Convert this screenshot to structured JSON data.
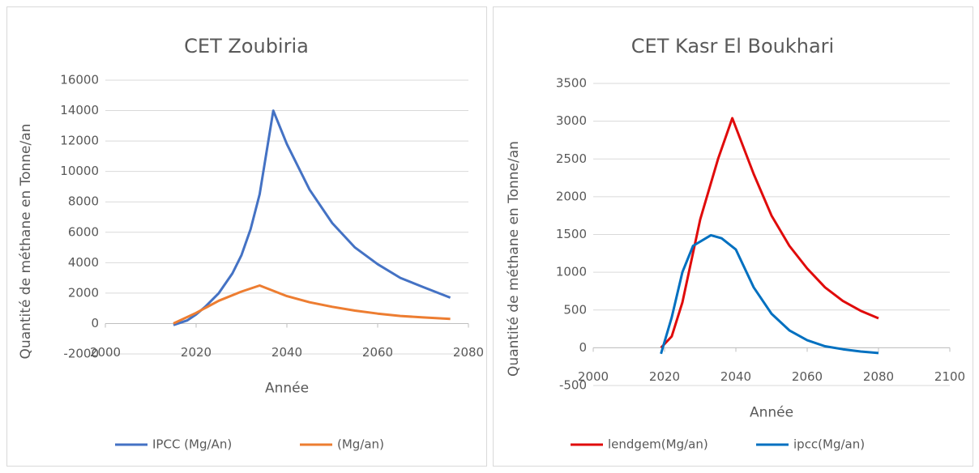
{
  "chart_data": [
    {
      "type": "line",
      "title": "CET Zoubiria",
      "xlabel": "Année",
      "ylabel": "Quantité de méthane en Tonne/an",
      "xlim": [
        2000,
        2080
      ],
      "xticks": [
        2000,
        2020,
        2040,
        2060,
        2080
      ],
      "ylim": [
        -2000,
        16000
      ],
      "yticks": [
        -2000,
        0,
        2000,
        4000,
        6000,
        8000,
        10000,
        12000,
        14000,
        16000
      ],
      "grid": true,
      "series": [
        {
          "name": "IPCC (Mg/An)",
          "color": "#4472c4",
          "x": [
            2015,
            2018,
            2020,
            2022,
            2025,
            2028,
            2030,
            2032,
            2034,
            2037,
            2040,
            2045,
            2050,
            2055,
            2060,
            2065,
            2070,
            2076
          ],
          "values": [
            -100,
            200,
            600,
            1100,
            2000,
            3300,
            4500,
            6200,
            8500,
            14000,
            11800,
            8800,
            6600,
            5000,
            3900,
            3000,
            2400,
            1700
          ]
        },
        {
          "name": "(Mg/an)",
          "color": "#ed7d31",
          "x": [
            2015,
            2020,
            2025,
            2030,
            2034,
            2040,
            2045,
            2050,
            2055,
            2060,
            2065,
            2070,
            2076
          ],
          "values": [
            0,
            700,
            1500,
            2100,
            2500,
            1800,
            1400,
            1100,
            850,
            650,
            500,
            400,
            300
          ]
        }
      ]
    },
    {
      "type": "line",
      "title": "CET Kasr El Boukhari",
      "xlabel": "Année",
      "ylabel": "Quantité de méthane en Tonne/an",
      "xlim": [
        2000,
        2100
      ],
      "xticks": [
        2000,
        2020,
        2040,
        2060,
        2080,
        2100
      ],
      "ylim": [
        -500,
        3500
      ],
      "yticks": [
        -500,
        0,
        500,
        1000,
        1500,
        2000,
        2500,
        3000,
        3500
      ],
      "grid": true,
      "series": [
        {
          "name": "lendgem(Mg/an)",
          "color": "#e00b0b",
          "x": [
            2019,
            2022,
            2025,
            2030,
            2035,
            2039,
            2045,
            2050,
            2055,
            2060,
            2065,
            2070,
            2075,
            2080
          ],
          "values": [
            0,
            150,
            600,
            1700,
            2500,
            3040,
            2300,
            1750,
            1350,
            1050,
            800,
            620,
            490,
            390
          ]
        },
        {
          "name": "ipcc(Mg/an)",
          "color": "#0070c0",
          "x": [
            2019,
            2022,
            2025,
            2028,
            2033,
            2036,
            2040,
            2045,
            2050,
            2055,
            2060,
            2065,
            2070,
            2075,
            2080
          ],
          "values": [
            -80,
            400,
            1000,
            1350,
            1490,
            1450,
            1300,
            800,
            450,
            230,
            100,
            20,
            -20,
            -50,
            -70
          ]
        }
      ]
    }
  ]
}
